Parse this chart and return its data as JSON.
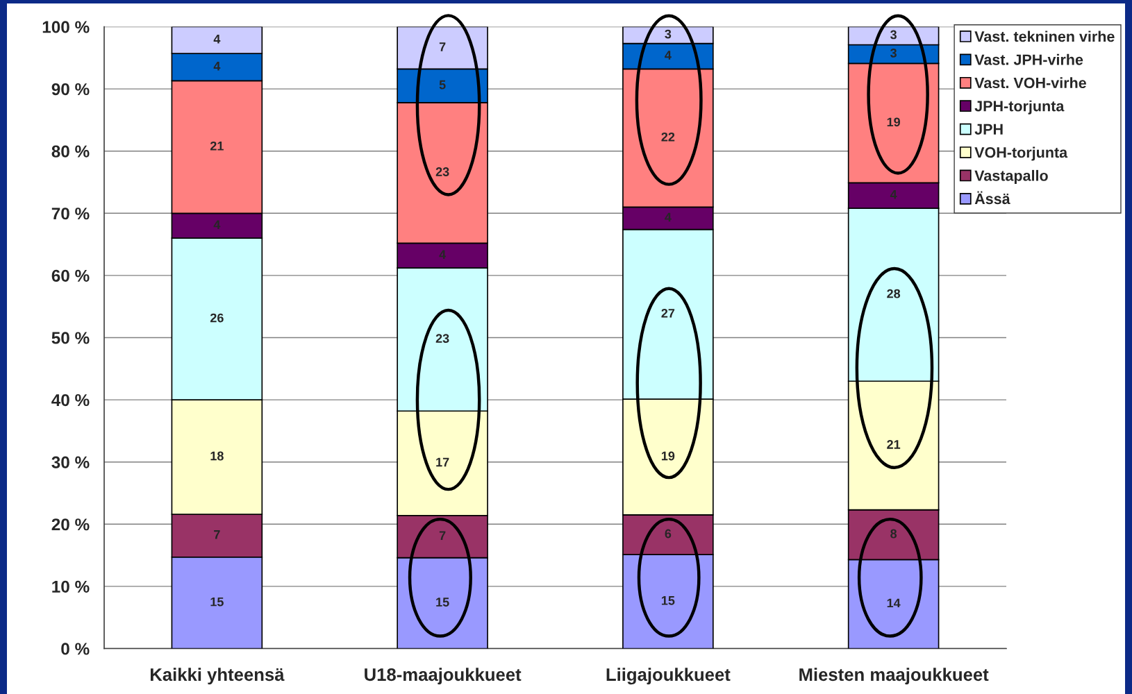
{
  "chart_data": {
    "type": "bar",
    "stacked": true,
    "categories": [
      "Kaikki yhteensä",
      "U18-maajoukkueet",
      "Liigajoukkueet",
      "Miesten maajoukkueet"
    ],
    "series": [
      {
        "name": "Ässä",
        "color": "#9999ff",
        "values": [
          14.7,
          14.6,
          15.1,
          14.3
        ],
        "value_labels": [
          "15",
          "15",
          "15",
          "14"
        ]
      },
      {
        "name": "Vastapallo",
        "color": "#993366",
        "values": [
          6.9,
          6.8,
          6.4,
          8.0
        ],
        "value_labels": [
          "7",
          "7",
          "6",
          "8"
        ]
      },
      {
        "name": "VOH-torjunta",
        "color": "#ffffcc",
        "values": [
          18.4,
          16.8,
          18.6,
          20.7
        ],
        "value_labels": [
          "18",
          "17",
          "19",
          "21"
        ]
      },
      {
        "name": "JPH",
        "color": "#ccffff",
        "values": [
          26.0,
          23.0,
          27.3,
          27.8
        ],
        "value_labels": [
          "26",
          "23",
          "27",
          "28"
        ]
      },
      {
        "name": "JPH-torjunta",
        "color": "#660066",
        "values": [
          4.0,
          4.0,
          3.6,
          4.1
        ],
        "value_labels": [
          "4",
          "4",
          "4",
          "4"
        ]
      },
      {
        "name": "Vast. VOH-virhe",
        "color": "#ff8080",
        "values": [
          21.3,
          22.6,
          22.2,
          19.2
        ],
        "value_labels": [
          "21",
          "23",
          "22",
          "19"
        ]
      },
      {
        "name": "Vast. JPH-virhe",
        "color": "#0066cc",
        "values": [
          4.4,
          5.4,
          4.1,
          3.0
        ],
        "value_labels": [
          "4",
          "5",
          "4",
          "3"
        ]
      },
      {
        "name": "Vast. tekninen virhe",
        "color": "#ccccff",
        "values": [
          4.3,
          6.8,
          2.7,
          2.9
        ],
        "value_labels": [
          "4",
          "7",
          "3",
          "3"
        ]
      }
    ],
    "ylim": [
      0,
      100
    ],
    "yticks": [
      {
        "value": 0,
        "label": "0 %"
      },
      {
        "value": 10,
        "label": "10 %"
      },
      {
        "value": 20,
        "label": "20 %"
      },
      {
        "value": 30,
        "label": "30 %"
      },
      {
        "value": 40,
        "label": "40 %"
      },
      {
        "value": 50,
        "label": "50 %"
      },
      {
        "value": 60,
        "label": "60 %"
      },
      {
        "value": 70,
        "label": "70 %"
      },
      {
        "value": 80,
        "label": "80 %"
      },
      {
        "value": 90,
        "label": "90 %"
      },
      {
        "value": 100,
        "label": "100 %"
      }
    ],
    "grid": "y",
    "legend": "top right"
  }
}
